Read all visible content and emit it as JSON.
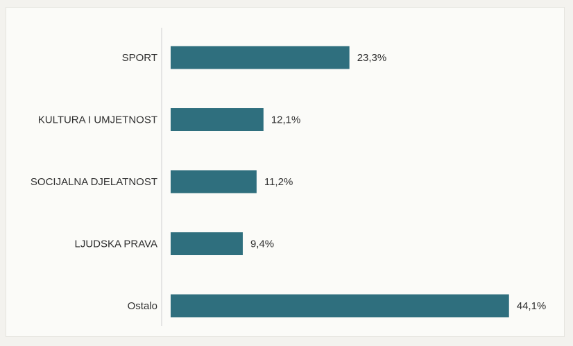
{
  "chart_data": {
    "type": "bar",
    "orientation": "horizontal",
    "categories": [
      "SPORT",
      "KULTURA I UMJETNOST",
      "SOCIJALNA DJELATNOST",
      "LJUDSKA PRAVA",
      "Ostalo"
    ],
    "values": [
      23.3,
      12.1,
      11.2,
      9.4,
      44.1
    ],
    "value_labels": [
      "23,3%",
      "12,1%",
      "11,2%",
      "9,4%",
      "44,1%"
    ],
    "title": "",
    "xlabel": "",
    "ylabel": "",
    "xlim": [
      0,
      50
    ],
    "grid": false,
    "bar_color": "#2f6f7e"
  }
}
